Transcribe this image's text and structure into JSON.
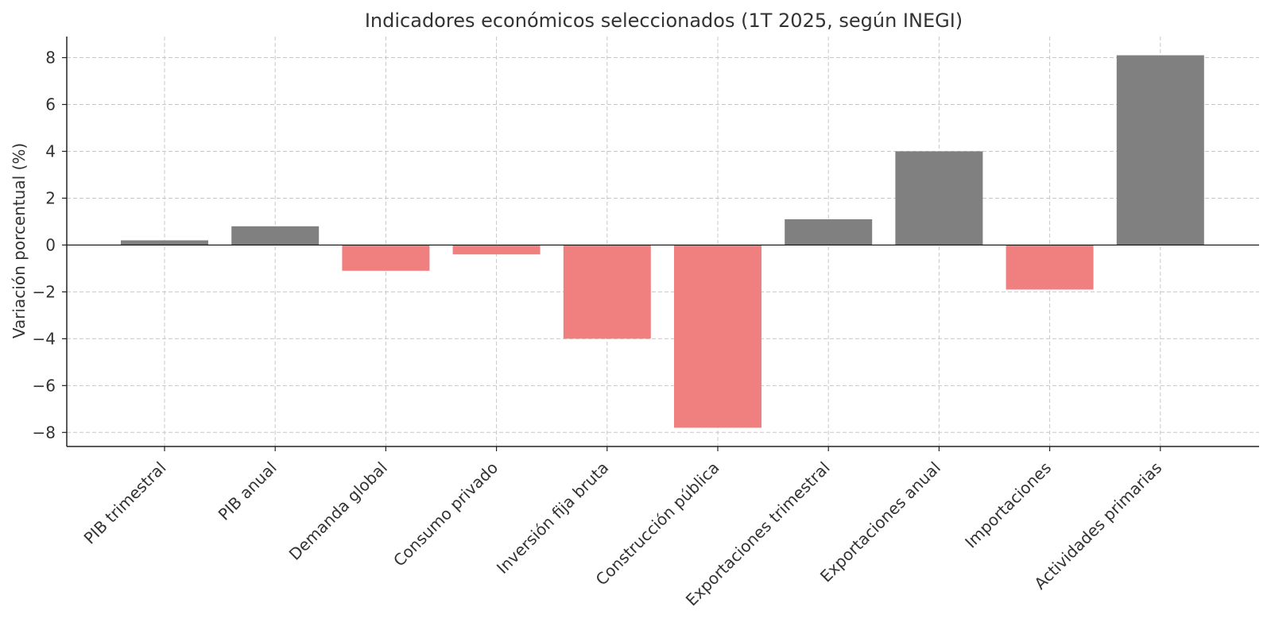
{
  "chart_data": {
    "type": "bar",
    "title": "Indicadores económicos seleccionados (1T 2025, según INEGI)",
    "xlabel": "",
    "ylabel": "Variación porcentual (%)",
    "categories": [
      "PIB trimestral",
      "PIB anual",
      "Demanda global",
      "Consumo privado",
      "Inversión fija bruta",
      "Construcción pública",
      "Exportaciones trimestral",
      "Exportaciones anual",
      "Importaciones",
      "Actividades primarias"
    ],
    "values": [
      0.2,
      0.8,
      -1.1,
      -0.4,
      -4.0,
      -7.8,
      1.1,
      4.0,
      -1.9,
      8.1
    ],
    "ylim": [
      -8.6,
      8.9
    ],
    "yticks": [
      8,
      6,
      4,
      2,
      0,
      -2,
      -4,
      -6,
      -8
    ],
    "ytick_labels": [
      "8",
      "6",
      "4",
      "2",
      "0",
      "−2",
      "−4",
      "−6",
      "−8"
    ],
    "grid": true,
    "legend": "none",
    "colors": {
      "positive": "#808080",
      "negative": "#f08080"
    }
  }
}
